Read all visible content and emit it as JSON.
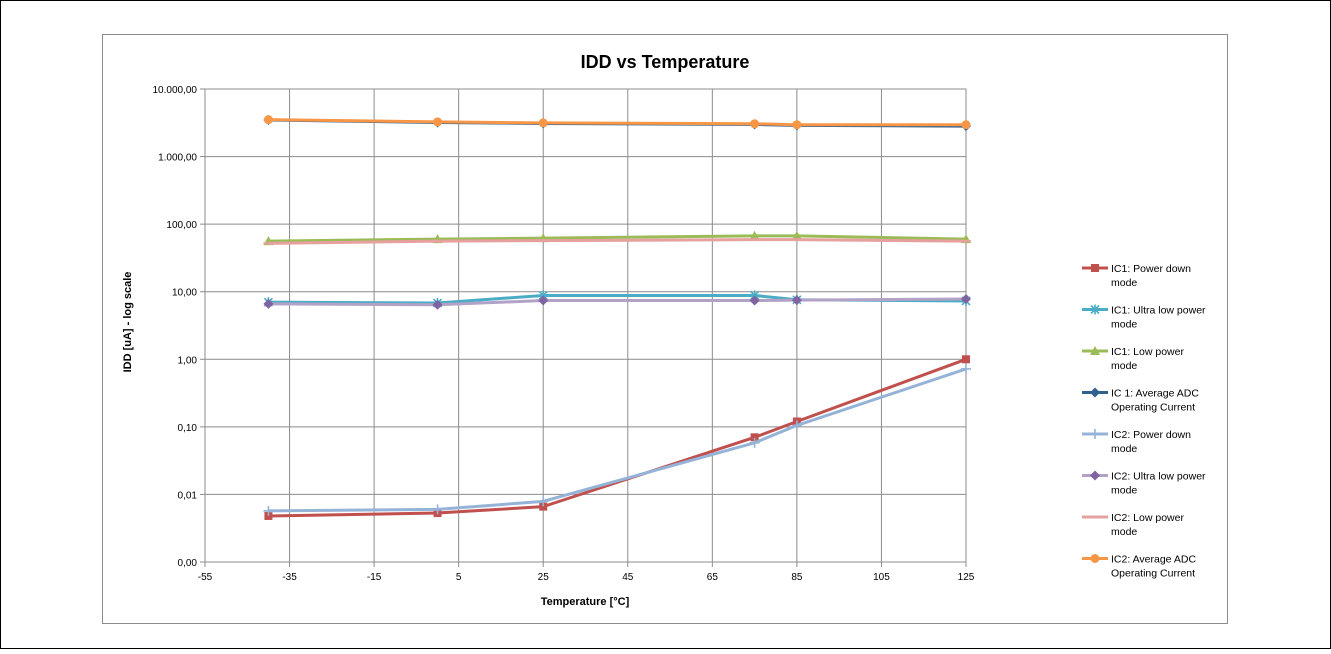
{
  "chart_data": {
    "type": "line",
    "title": "IDD vs Temperature",
    "xlabel": "Temperature [°C]",
    "ylabel": "IDD [uA] - log scale",
    "xlim": [
      -55,
      125
    ],
    "xticks": [
      -55,
      -35,
      -15,
      5,
      25,
      45,
      65,
      85,
      105,
      125
    ],
    "xtick_labels": [
      "-55",
      "-35",
      "-15",
      "5",
      "25",
      "45",
      "65",
      "85",
      "105",
      "125"
    ],
    "y_scale": "log",
    "ylim": [
      0.001,
      10000
    ],
    "yticks": [
      0.001,
      0.01,
      0.1,
      1,
      10,
      100,
      1000,
      10000
    ],
    "ytick_labels": [
      "0,00",
      "0,01",
      "0,10",
      "1,00",
      "10,00",
      "100,00",
      "1.000,00",
      "10.000,00"
    ],
    "grid": true,
    "legend_position": "right",
    "series": [
      {
        "name": "IC1: Power down mode",
        "legend_lines": [
          "IC1: Power down",
          "mode"
        ],
        "color": "#C0504D",
        "marker": "square",
        "x": [
          -40,
          0,
          25,
          75,
          85,
          125
        ],
        "y": [
          0.0048,
          0.0053,
          0.0066,
          0.07,
          0.12,
          1.0
        ]
      },
      {
        "name": "IC1: Ultra low power mode",
        "legend_lines": [
          "IC1: Ultra low power",
          "mode"
        ],
        "color": "#4BACC6",
        "marker": "star",
        "x": [
          -40,
          0,
          25,
          75,
          85,
          125
        ],
        "y": [
          7.0,
          6.8,
          8.8,
          8.8,
          7.6,
          7.3
        ]
      },
      {
        "name": "IC1: Low power mode",
        "legend_lines": [
          "IC1: Low power",
          "mode"
        ],
        "color": "#9BBB59",
        "marker": "triangle",
        "x": [
          -40,
          0,
          25,
          75,
          85,
          125
        ],
        "y": [
          56,
          60,
          62,
          67,
          67,
          60
        ]
      },
      {
        "name": "IC 1: Average ADC Operating Current",
        "legend_lines": [
          "IC 1: Average ADC",
          "Operating Current"
        ],
        "color": "#2E6190",
        "marker": "diamond",
        "x": [
          -40,
          0,
          25,
          75,
          85,
          125
        ],
        "y": [
          3480,
          3200,
          3090,
          2990,
          2900,
          2820
        ]
      },
      {
        "name": "IC2: Power down mode",
        "legend_lines": [
          "IC2: Power down",
          "mode"
        ],
        "color": "#95B3D7",
        "marker": "plus",
        "x": [
          -40,
          0,
          25,
          75,
          85,
          125
        ],
        "y": [
          0.0057,
          0.006,
          0.0079,
          0.058,
          0.105,
          0.72
        ]
      },
      {
        "name": "IC2: Ultra low power mode",
        "legend_lines": [
          "IC2: Ultra low power",
          "mode"
        ],
        "color": "#8064A2",
        "line_color": "#B3A2C7",
        "marker": "diamond",
        "x": [
          -40,
          0,
          25,
          75,
          85,
          125
        ],
        "y": [
          6.6,
          6.4,
          7.4,
          7.4,
          7.5,
          7.8
        ]
      },
      {
        "name": "IC2: Low power mode",
        "legend_lines": [
          "IC2: Low power",
          "mode"
        ],
        "color": "#E6A09E",
        "marker": "dash",
        "x": [
          -40,
          0,
          25,
          75,
          85,
          125
        ],
        "y": [
          52,
          56,
          57,
          59,
          59,
          56
        ]
      },
      {
        "name": "IC2: Average ADC Operating Current",
        "legend_lines": [
          "IC2: Average ADC",
          "Operating Current"
        ],
        "color": "#F79646",
        "marker": "circle",
        "x": [
          -40,
          0,
          25,
          75,
          85,
          125
        ],
        "y": [
          3520,
          3260,
          3150,
          3060,
          2960,
          2960
        ]
      }
    ]
  }
}
